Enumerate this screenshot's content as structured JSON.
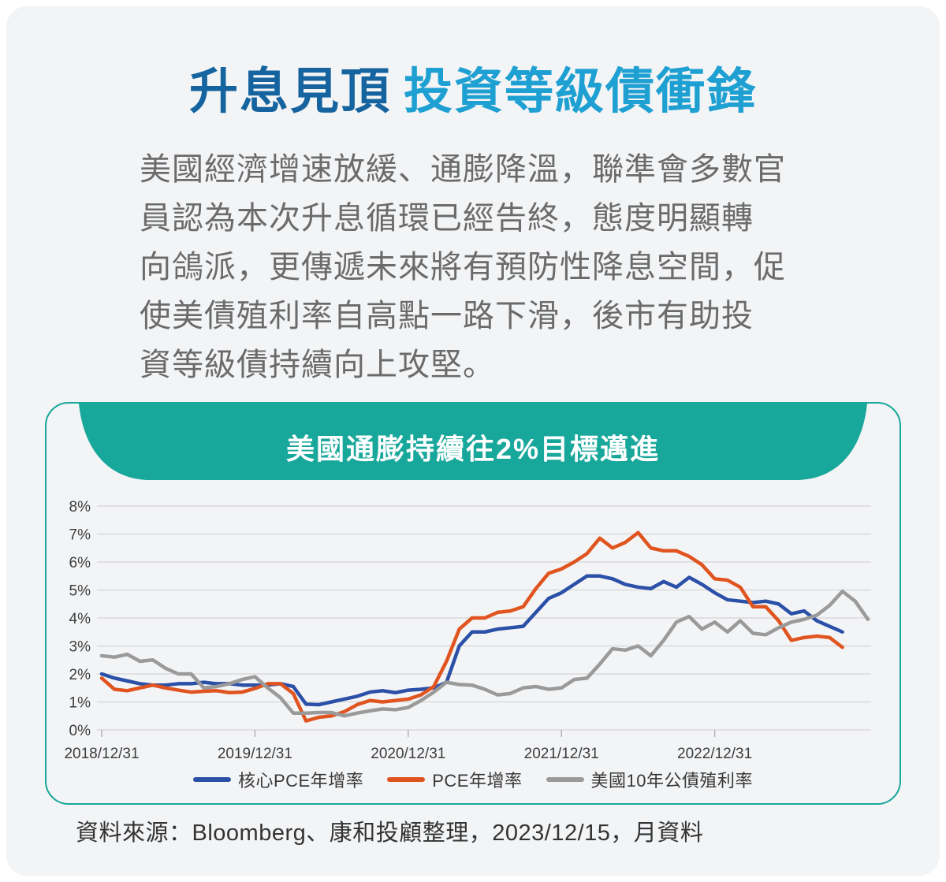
{
  "header": {
    "title_primary": "升息見頂",
    "title_secondary": "投資等級債衝鋒"
  },
  "paragraph": {
    "lines": [
      "美國經濟增速放緩、通膨降溫，聯準會多數官",
      "員認為本次升息循環已經告終，態度明顯轉",
      "向鴿派，更傳遞未來將有預防性降息空間，促",
      "使美債殖利率自高點一路下滑，後市有助投",
      "資等級債持續向上攻堅。"
    ]
  },
  "chart_card": {
    "banner_title": "美國通膨持續往2%目標邁進"
  },
  "footer": {
    "source": "資料來源：Bloomberg、康和投顧整理，2023/12/15，月資料"
  },
  "colors": {
    "accent_teal": "#18a79b",
    "title_dark_blue": "#15649f",
    "title_light_blue": "#1fa0d2",
    "paragraph_gray": "#6b6b6b",
    "grid_gray": "#d9dadc",
    "axis_label": "#3c3c3c"
  },
  "chart_data": {
    "type": "line",
    "title": "美國通膨持續往2%目標邁進",
    "x_unit": "month",
    "x_interval": "monthly",
    "n_months": 61,
    "x_tick_labels": [
      "2018/12/31",
      "2019/12/31",
      "2020/12/31",
      "2021/12/31",
      "2022/12/31"
    ],
    "x_tick_months": [
      0,
      12,
      24,
      36,
      48
    ],
    "ylim": [
      0,
      8
    ],
    "y_tick_labels": [
      "0%",
      "1%",
      "2%",
      "3%",
      "4%",
      "5%",
      "6%",
      "7%",
      "8%"
    ],
    "grid": "horizontal",
    "legend_position": "bottom",
    "series": [
      {
        "name": "核心PCE年增率",
        "color": "#2b50a8",
        "values": [
          2.0,
          1.85,
          1.75,
          1.65,
          1.6,
          1.6,
          1.65,
          1.65,
          1.7,
          1.65,
          1.65,
          1.6,
          1.6,
          1.6,
          1.65,
          1.55,
          0.92,
          0.9,
          1.0,
          1.1,
          1.2,
          1.35,
          1.4,
          1.33,
          1.42,
          1.45,
          1.5,
          1.7,
          3.0,
          3.5,
          3.5,
          3.6,
          3.65,
          3.7,
          4.2,
          4.7,
          4.9,
          5.2,
          5.5,
          5.5,
          5.4,
          5.2,
          5.1,
          5.05,
          5.3,
          5.1,
          5.45,
          5.2,
          4.9,
          4.65,
          4.6,
          4.55,
          4.6,
          4.5,
          4.15,
          4.25,
          3.9,
          3.7,
          3.5,
          null,
          null
        ]
      },
      {
        "name": "PCE年增率",
        "color": "#e0541f",
        "values": [
          1.85,
          1.45,
          1.4,
          1.5,
          1.6,
          1.5,
          1.42,
          1.35,
          1.38,
          1.4,
          1.33,
          1.35,
          1.48,
          1.65,
          1.65,
          1.3,
          0.32,
          0.45,
          0.5,
          0.65,
          0.9,
          1.05,
          1.0,
          1.05,
          1.1,
          1.25,
          1.55,
          2.45,
          3.6,
          4.0,
          4.0,
          4.2,
          4.25,
          4.4,
          5.05,
          5.6,
          5.75,
          6.0,
          6.3,
          6.85,
          6.5,
          6.7,
          7.05,
          6.5,
          6.4,
          6.4,
          6.2,
          5.9,
          5.4,
          5.35,
          5.1,
          4.4,
          4.4,
          3.9,
          3.2,
          3.3,
          3.35,
          3.3,
          2.95,
          null,
          null
        ]
      },
      {
        "name": "美國10年公債殖利率",
        "color": "#9a9a9a",
        "values": [
          2.65,
          2.6,
          2.7,
          2.45,
          2.5,
          2.2,
          2.0,
          2.0,
          1.5,
          1.55,
          1.65,
          1.8,
          1.9,
          1.5,
          1.15,
          0.6,
          0.6,
          0.62,
          0.62,
          0.5,
          0.6,
          0.68,
          0.75,
          0.72,
          0.8,
          1.05,
          1.35,
          1.7,
          1.62,
          1.6,
          1.45,
          1.25,
          1.3,
          1.5,
          1.55,
          1.45,
          1.5,
          1.8,
          1.85,
          2.35,
          2.9,
          2.85,
          3.0,
          2.65,
          3.2,
          3.85,
          4.05,
          3.6,
          3.85,
          3.5,
          3.9,
          3.45,
          3.4,
          3.65,
          3.85,
          3.95,
          4.1,
          4.45,
          4.95,
          4.6,
          3.95
        ]
      }
    ]
  }
}
